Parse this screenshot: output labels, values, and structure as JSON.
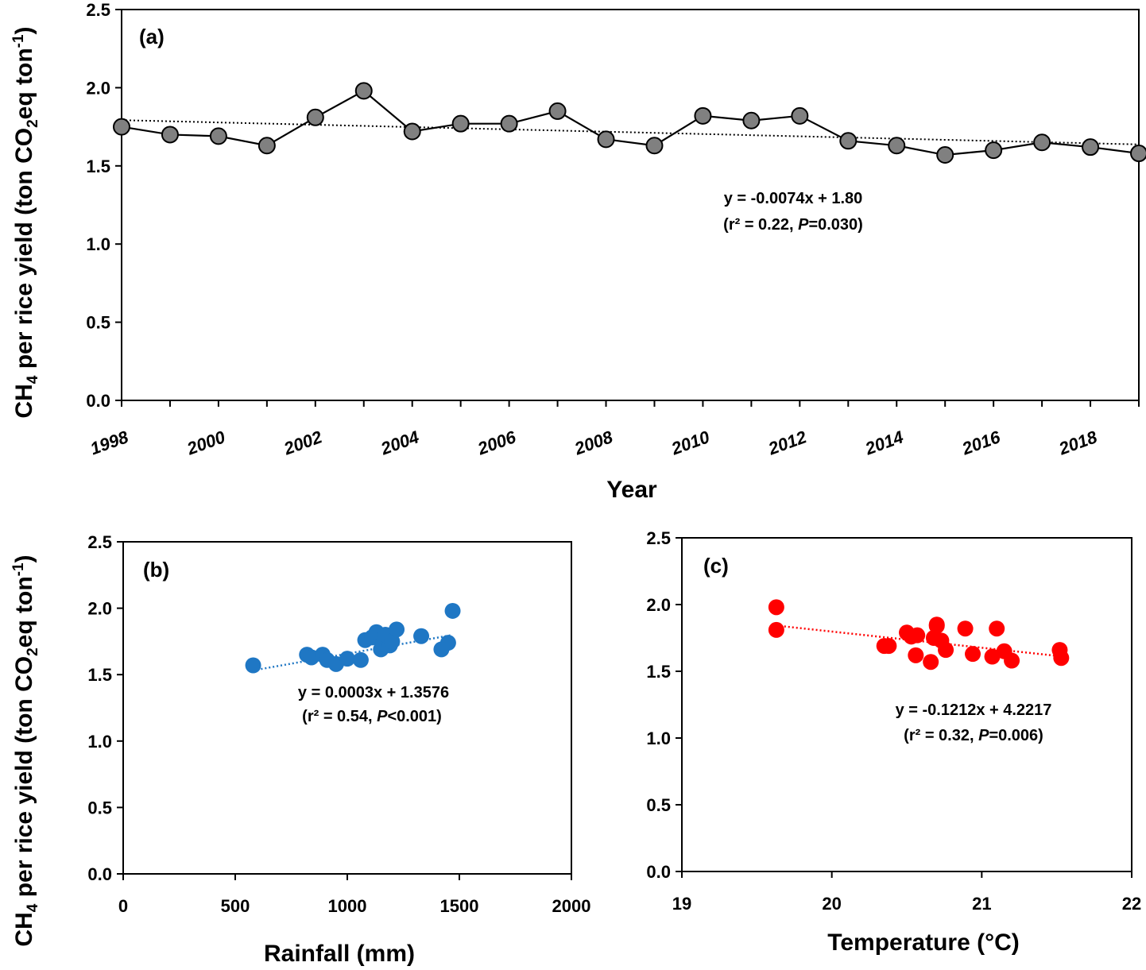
{
  "shared": {
    "ylabel_prefix": "CH",
    "ylabel_sub": "4",
    "ylabel_mid": " per rice yield (ton CO",
    "ylabel_sub2": "2",
    "ylabel_mid2": "eq ton",
    "ylabel_sup": "-1",
    "ylabel_end": ")"
  },
  "chart_data": [
    {
      "id": "a",
      "type": "line",
      "panel_label": "(a)",
      "xlabel": "Year",
      "xlim": [
        1998,
        2019
      ],
      "ylim": [
        0,
        2.5
      ],
      "yticks": [
        "0.0",
        "0.5",
        "1.0",
        "1.5",
        "2.0",
        "2.5"
      ],
      "xtick_labels": [
        "1998",
        "2000",
        "2002",
        "2004",
        "2006",
        "2008",
        "2010",
        "2012",
        "2014",
        "2016",
        "2018"
      ],
      "x": [
        1998,
        1999,
        2000,
        2001,
        2002,
        2003,
        2004,
        2005,
        2006,
        2007,
        2008,
        2009,
        2010,
        2011,
        2012,
        2013,
        2014,
        2015,
        2016,
        2017,
        2018,
        2019
      ],
      "y": [
        1.75,
        1.7,
        1.69,
        1.63,
        1.81,
        1.98,
        1.72,
        1.77,
        1.77,
        1.85,
        1.67,
        1.63,
        1.82,
        1.79,
        1.82,
        1.66,
        1.63,
        1.57,
        1.6,
        1.65,
        1.62,
        1.58
      ],
      "trendline": {
        "slope": -0.0074,
        "intercept": 1.8
      },
      "equation": "y = -0.0074x + 1.80",
      "stats_pre": "(r² = 0.22, ",
      "stats_p": "P",
      "stats_post": "=0.030)",
      "marker_color": "#808080",
      "grid": false
    },
    {
      "id": "b",
      "type": "scatter",
      "panel_label": "(b)",
      "xlabel": "Rainfall (mm)",
      "xlim": [
        0,
        2000
      ],
      "ylim": [
        0,
        2.5
      ],
      "xticks": [
        "0",
        "500",
        "1000",
        "1500",
        "2000"
      ],
      "yticks": [
        "0.0",
        "0.5",
        "1.0",
        "1.5",
        "2.0",
        "2.5"
      ],
      "x": [
        580,
        820,
        840,
        890,
        910,
        950,
        1000,
        1060,
        1080,
        1110,
        1130,
        1150,
        1160,
        1170,
        1190,
        1200,
        1220,
        1330,
        1420,
        1450,
        1470
      ],
      "y": [
        1.57,
        1.65,
        1.63,
        1.65,
        1.61,
        1.58,
        1.62,
        1.61,
        1.76,
        1.78,
        1.82,
        1.69,
        1.73,
        1.8,
        1.72,
        1.75,
        1.84,
        1.79,
        1.69,
        1.74,
        1.98
      ],
      "trendline": {
        "slope": 0.0003,
        "intercept": 1.3576,
        "x_range": [
          580,
          1470
        ]
      },
      "equation": "y = 0.0003x + 1.3576",
      "stats_pre": "(r² = 0.54, ",
      "stats_p": "P",
      "stats_post": "<0.001)",
      "marker_color": "#1f77c4",
      "grid": false
    },
    {
      "id": "c",
      "type": "scatter",
      "panel_label": "(c)",
      "xlabel": "Temperature (°C)",
      "xlim": [
        19,
        22
      ],
      "ylim": [
        0,
        2.5
      ],
      "xticks": [
        "19",
        "20",
        "21",
        "22"
      ],
      "yticks": [
        "0.0",
        "0.5",
        "1.0",
        "1.5",
        "2.0",
        "2.5"
      ],
      "x": [
        19.63,
        19.63,
        20.35,
        20.38,
        20.5,
        20.53,
        20.56,
        20.57,
        20.66,
        20.68,
        20.7,
        20.7,
        20.73,
        20.76,
        20.89,
        20.94,
        21.07,
        21.1,
        21.15,
        21.2,
        21.52,
        21.53
      ],
      "y": [
        1.98,
        1.81,
        1.69,
        1.69,
        1.79,
        1.76,
        1.62,
        1.77,
        1.57,
        1.75,
        1.84,
        1.85,
        1.73,
        1.66,
        1.82,
        1.63,
        1.61,
        1.82,
        1.65,
        1.58,
        1.66,
        1.6
      ],
      "trendline": {
        "slope": -0.1212,
        "intercept": 4.2217,
        "x_range": [
          19.63,
          21.53
        ]
      },
      "equation": "y = -0.1212x + 4.2217",
      "stats_pre": "(r² = 0.32, ",
      "stats_p": "P",
      "stats_post": "=0.006)",
      "marker_color": "#ff0000",
      "grid": false
    }
  ]
}
